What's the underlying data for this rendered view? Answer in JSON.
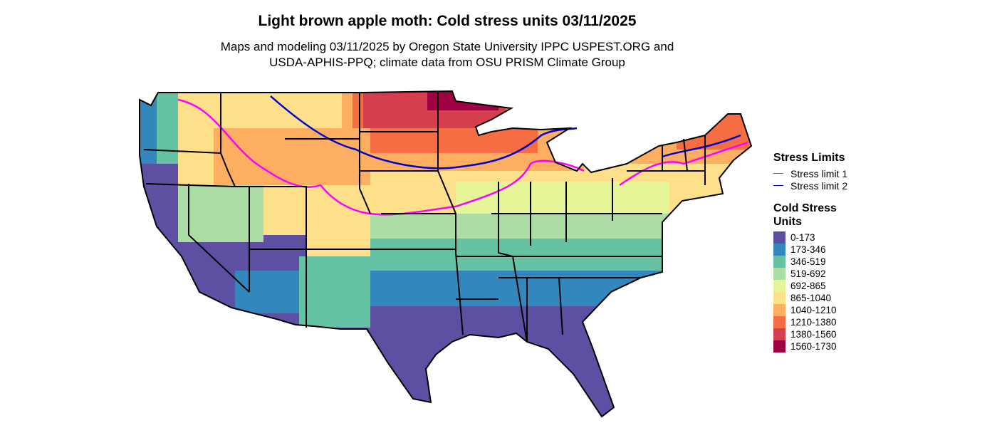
{
  "title": "Light brown apple moth: Cold stress units 03/11/2025",
  "subtitle": [
    "Maps and modeling 03/11/2025 by Oregon State University IPPC USPEST.ORG and",
    "USDA-APHIS-PPQ; climate data from OSU PRISM Climate Group"
  ],
  "legend_limits": {
    "title": "Stress Limits",
    "items": [
      {
        "label": "Stress limit 1",
        "color": "#ff00ff"
      },
      {
        "label": "Stress limit 2",
        "color": "#0000cc"
      }
    ]
  },
  "legend_units": {
    "title": "Cold Stress Units",
    "items": [
      {
        "label": "0-173",
        "color": "#5e4fa2"
      },
      {
        "label": "173-346",
        "color": "#3288bd"
      },
      {
        "label": "346-519",
        "color": "#66c2a5"
      },
      {
        "label": "519-692",
        "color": "#abdda4"
      },
      {
        "label": "692-865",
        "color": "#e6f598"
      },
      {
        "label": "865-1040",
        "color": "#fee08b"
      },
      {
        "label": "1040-1210",
        "color": "#fdae61"
      },
      {
        "label": "1210-1380",
        "color": "#f46d43"
      },
      {
        "label": "1380-1560",
        "color": "#d53e4f"
      },
      {
        "label": "1560-1730",
        "color": "#9e0142"
      }
    ]
  }
}
